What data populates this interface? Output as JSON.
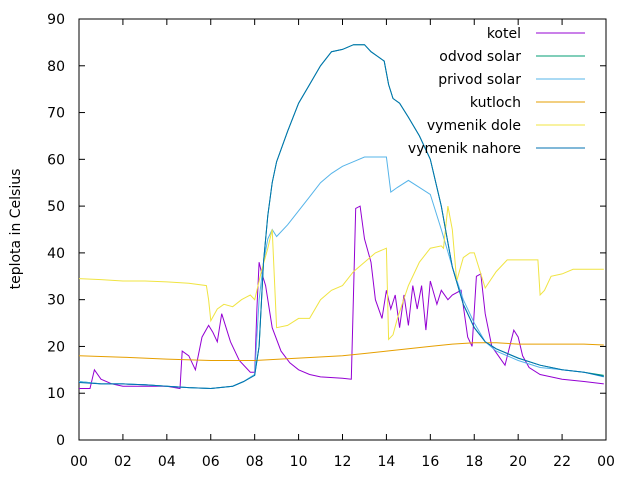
{
  "chart_data": {
    "type": "line",
    "title": "",
    "xlabel": "",
    "ylabel": "teplota in Celsius",
    "xlim": [
      0,
      24
    ],
    "ylim": [
      0,
      90
    ],
    "grid": false,
    "legend_position": "top-right",
    "x_tick_labels": [
      "00",
      "02",
      "04",
      "06",
      "08",
      "10",
      "12",
      "14",
      "16",
      "18",
      "20",
      "22",
      "00"
    ],
    "y_ticks": [
      0,
      10,
      20,
      30,
      40,
      50,
      60,
      70,
      80,
      90
    ],
    "series": [
      {
        "name": "kotel",
        "color": "#9400d3",
        "x": [
          0,
          0.5,
          0.7,
          1.0,
          1.5,
          2,
          3,
          4,
          4.6,
          4.7,
          5.0,
          5.3,
          5.6,
          5.9,
          6.1,
          6.3,
          6.5,
          6.9,
          7.3,
          7.8,
          8.0,
          8.1,
          8.2,
          8.3,
          8.5,
          8.8,
          9.2,
          9.6,
          10.0,
          10.5,
          11.0,
          12.0,
          12.4,
          12.6,
          12.8,
          13.0,
          13.3,
          13.5,
          13.8,
          14.0,
          14.2,
          14.4,
          14.6,
          14.8,
          15.0,
          15.2,
          15.4,
          15.6,
          15.8,
          16.0,
          16.3,
          16.5,
          16.8,
          17.0,
          17.4,
          17.7,
          17.9,
          18.1,
          18.3,
          18.5,
          18.8,
          19.1,
          19.4,
          19.8,
          20.0,
          20.2,
          20.5,
          21.0,
          21.5,
          22.0,
          23.0,
          23.9
        ],
        "values": [
          11,
          11,
          15,
          13,
          12,
          11.5,
          11.5,
          11.5,
          11,
          19,
          18,
          15,
          22,
          24.5,
          23,
          21,
          27,
          21,
          17,
          14.5,
          14.5,
          28,
          38,
          36,
          33,
          24,
          19,
          16.5,
          15,
          14,
          13.5,
          13.2,
          13,
          49.5,
          50,
          43,
          38,
          30,
          26,
          32,
          28,
          31,
          24,
          31,
          24.5,
          33,
          28,
          33,
          23.5,
          34,
          29,
          32,
          30,
          31,
          32,
          22,
          20,
          35,
          35.5,
          27,
          20,
          18,
          16,
          23.5,
          22,
          18,
          15.5,
          14,
          13.5,
          13,
          12.5,
          12
        ]
      },
      {
        "name": "odvod solar",
        "color": "#009e73",
        "x": [
          0,
          1,
          2,
          3,
          4,
          5,
          6,
          7,
          7.5,
          8,
          8.2,
          8.4,
          8.6,
          8.8,
          9,
          9.5,
          10,
          10.5,
          11,
          11.5,
          12,
          12.5,
          13,
          13.3,
          13.6,
          13.9,
          14.1,
          14.3,
          14.6,
          15,
          15.5,
          16,
          16.5,
          17,
          17.5,
          18,
          18.5,
          19,
          20,
          21,
          22,
          23,
          23.9
        ],
        "values": [
          12.5,
          12,
          12,
          11.8,
          11.5,
          11.2,
          11,
          11.5,
          12.5,
          14,
          20,
          38,
          48,
          55,
          59.5,
          66,
          72,
          76,
          80,
          83,
          83.5,
          84.5,
          84.5,
          83,
          82,
          81,
          76,
          73,
          72,
          69,
          65,
          60,
          50,
          37,
          29,
          24,
          21,
          19.5,
          17.5,
          16,
          15,
          14.5,
          13.8
        ]
      },
      {
        "name": "privod solar",
        "color": "#56b4e9",
        "x": [
          0,
          1,
          2,
          3,
          4,
          5,
          6,
          7,
          7.5,
          8,
          8.2,
          8.4,
          8.6,
          8.8,
          9,
          9.5,
          10,
          10.5,
          11,
          11.5,
          12,
          12.5,
          13,
          13.5,
          14,
          14.2,
          14.5,
          15,
          15.5,
          16,
          16.5,
          17,
          17.5,
          18,
          18.5,
          19,
          20,
          21,
          22,
          23,
          23.9
        ],
        "values": [
          12.5,
          12,
          12,
          11.8,
          11.5,
          11.2,
          11,
          11.5,
          12.5,
          14,
          30,
          38,
          43,
          45,
          43.5,
          46,
          49,
          52,
          55,
          57,
          58.5,
          59.5,
          60.5,
          60.5,
          60.5,
          53,
          54,
          55.5,
          54,
          52.5,
          45,
          37,
          30,
          25,
          21,
          19,
          17,
          15.5,
          15,
          14.5,
          13.5
        ]
      },
      {
        "name": "kutloch",
        "color": "#e69f00",
        "x": [
          0,
          2,
          4,
          6,
          8,
          10,
          12,
          13,
          14,
          15,
          16,
          17,
          18,
          19,
          20,
          21,
          22,
          23,
          23.9
        ],
        "values": [
          18,
          17.7,
          17.3,
          17,
          17,
          17.5,
          18,
          18.5,
          19,
          19.5,
          20,
          20.5,
          20.8,
          20.8,
          20.5,
          20.5,
          20.5,
          20.5,
          20.3
        ]
      },
      {
        "name": "vymenik dole",
        "color": "#f0e442",
        "x": [
          0,
          1,
          2,
          3,
          4,
          5,
          5.8,
          5.9,
          6.0,
          6.3,
          6.6,
          7.0,
          7.4,
          7.6,
          7.8,
          8.0,
          8.3,
          8.6,
          8.8,
          9.0,
          9.5,
          10.0,
          10.5,
          11.0,
          11.5,
          12.0,
          12.5,
          13.0,
          13.5,
          14.0,
          14.1,
          14.3,
          14.5,
          15.0,
          15.5,
          16.0,
          16.5,
          16.6,
          16.8,
          17.0,
          17.2,
          17.5,
          17.8,
          18.0,
          18.5,
          19.0,
          19.5,
          20.0,
          20.5,
          20.9,
          21.0,
          21.2,
          21.5,
          22.0,
          22.5,
          23.0,
          23.9
        ],
        "values": [
          34.5,
          34.3,
          34,
          34,
          33.8,
          33.5,
          33,
          30,
          25.5,
          28,
          29,
          28.5,
          30,
          30.5,
          31,
          30,
          36,
          41,
          45,
          24,
          24.5,
          26,
          26,
          30,
          32,
          33,
          36,
          38,
          40,
          41,
          21.5,
          22.5,
          26,
          33,
          38,
          41,
          41.5,
          41,
          50,
          45,
          34,
          39,
          40,
          40,
          32.5,
          36,
          38.5,
          38.5,
          38.5,
          38.5,
          31,
          32,
          35,
          35.5,
          36.5,
          36.5,
          36.5
        ]
      },
      {
        "name": "vymenik nahore",
        "color": "#0072b2",
        "x": [
          0,
          1,
          2,
          3,
          4,
          5,
          6,
          7,
          7.5,
          8,
          8.2,
          8.4,
          8.6,
          8.8,
          9,
          9.5,
          10,
          10.5,
          11,
          11.5,
          12,
          12.5,
          13,
          13.3,
          13.6,
          13.9,
          14.1,
          14.3,
          14.6,
          15,
          15.5,
          16,
          16.5,
          17,
          17.5,
          18,
          18.5,
          19,
          20,
          21,
          22,
          23,
          23.9
        ],
        "values": [
          12.3,
          12,
          12,
          11.8,
          11.5,
          11.2,
          11,
          11.5,
          12.5,
          13.8,
          20,
          38,
          48,
          55,
          59.5,
          66,
          72,
          76,
          80,
          83,
          83.5,
          84.5,
          84.5,
          83,
          82,
          81,
          76,
          73,
          72,
          69,
          65,
          60,
          50,
          37,
          29,
          24,
          21,
          19.5,
          17.5,
          16,
          15,
          14.5,
          13.6
        ]
      }
    ]
  }
}
